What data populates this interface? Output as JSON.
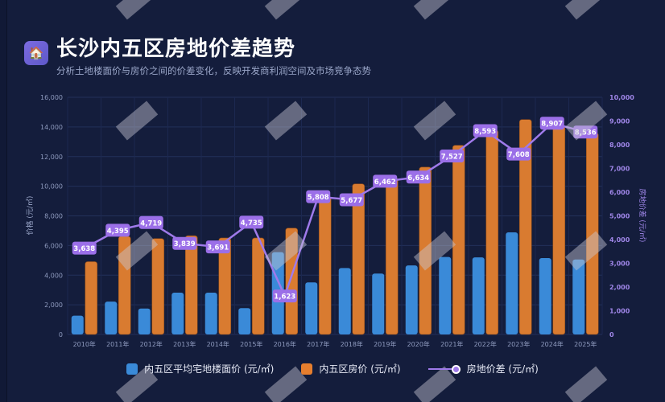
{
  "header": {
    "icon": "house-icon",
    "title": "长沙内五区房地价差趋势",
    "subtitle": "分析土地楼面价与房价之间的价差变化，反映开发商利润空间及市场竞争态势"
  },
  "chart_data": {
    "type": "bar+line",
    "categories": [
      "2010年",
      "2011年",
      "2012年",
      "2013年",
      "2014年",
      "2015年",
      "2016年",
      "2017年",
      "2018年",
      "2019年",
      "2020年",
      "2021年",
      "2022年",
      "2023年",
      "2024年",
      "2025年"
    ],
    "series": [
      {
        "name": "内五区平均宅地楼面价 (元/㎡)",
        "type": "bar",
        "axis": "left",
        "color": "#3a8ad8",
        "values": [
          1270,
          2220,
          1750,
          2820,
          2820,
          1775,
          5550,
          3510,
          4480,
          4110,
          4660,
          5230,
          5200,
          6890,
          5150,
          5060
        ]
      },
      {
        "name": "内五区房价 (元/㎡)",
        "type": "bar",
        "axis": "left",
        "color": "#d97b30",
        "values": [
          4910,
          6620,
          6470,
          6660,
          6510,
          6510,
          7175,
          9320,
          10160,
          10570,
          11290,
          12760,
          13790,
          14500,
          14060,
          13600
        ]
      },
      {
        "name": "房地价差 (元/㎡)",
        "type": "line",
        "axis": "right",
        "color": "#9f7aea",
        "values": [
          3638,
          4395,
          4719,
          3839,
          3691,
          4735,
          1623,
          5808,
          5677,
          6462,
          6634,
          7527,
          8593,
          7608,
          8907,
          8536
        ],
        "labels": [
          "3,638",
          "4,395",
          "4,719",
          "3,839",
          "3,691",
          "4,735",
          "1,623",
          "5,808",
          "5,677",
          "6,462",
          "6,634",
          "7,527",
          "8,593",
          "7,608",
          "8,907",
          "8,536"
        ]
      }
    ],
    "y_left": {
      "label": "价格 (元/㎡)",
      "range": [
        0,
        16000
      ],
      "ticks": [
        "0",
        "2,000",
        "4,000",
        "6,000",
        "8,000",
        "10,000",
        "12,000",
        "14,000",
        "16,000"
      ]
    },
    "y_right": {
      "label": "房地价差 (元/㎡)",
      "range": [
        0,
        10000
      ],
      "ticks": [
        "0",
        "1,000",
        "2,000",
        "3,000",
        "4,000",
        "5,000",
        "6,000",
        "7,000",
        "8,000",
        "9,000",
        "10,000"
      ]
    },
    "grid": true,
    "legend": "bottom"
  }
}
